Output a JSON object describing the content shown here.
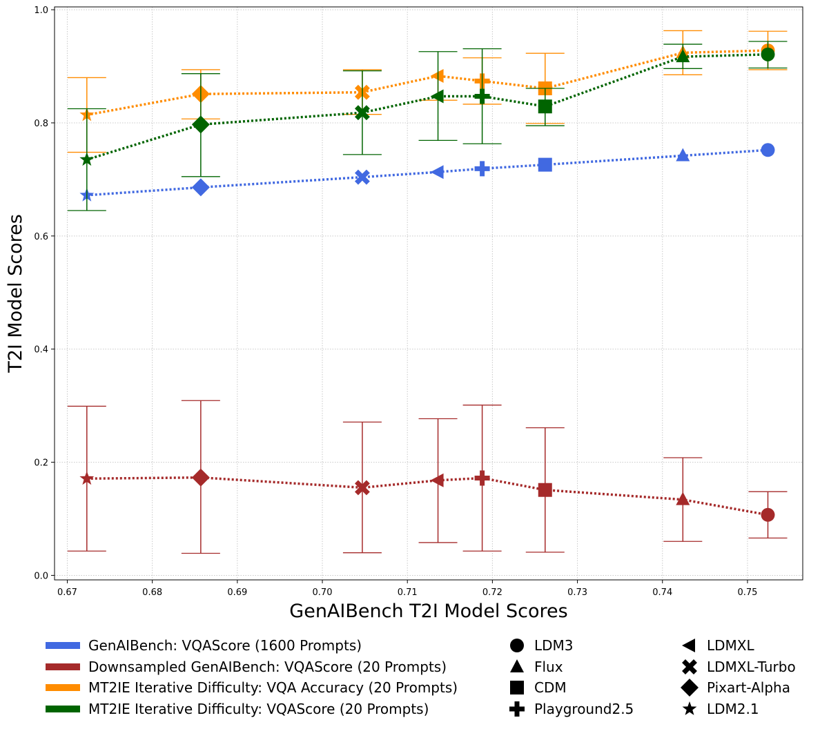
{
  "chart_data": {
    "type": "line",
    "title": "",
    "xlabel": "GenAIBench T2I Model Scores",
    "ylabel": "T2I Model Scores",
    "xlim": [
      0.6685,
      0.7565
    ],
    "ylim": [
      -0.008,
      1.005
    ],
    "xticks": [
      "0.67",
      "0.68",
      "0.69",
      "0.70",
      "0.71",
      "0.72",
      "0.73",
      "0.74",
      "0.75"
    ],
    "yticks": [
      "0.0",
      "0.2",
      "0.4",
      "0.6",
      "0.8",
      "1.0"
    ],
    "grid": true,
    "models": [
      {
        "name": "LDM2.1",
        "marker": "star",
        "x": 0.6723
      },
      {
        "name": "Pixart-Alpha",
        "marker": "diamond",
        "x": 0.6857
      },
      {
        "name": "LDMXL-Turbo",
        "marker": "x",
        "x": 0.7047
      },
      {
        "name": "LDMXL",
        "marker": "triangle-left",
        "x": 0.7136
      },
      {
        "name": "Playground2.5",
        "marker": "plus",
        "x": 0.7188
      },
      {
        "name": "CDM",
        "marker": "square",
        "x": 0.7262
      },
      {
        "name": "Flux",
        "marker": "triangle-up",
        "x": 0.7424
      },
      {
        "name": "LDM3",
        "marker": "circle",
        "x": 0.7524
      }
    ],
    "series": [
      {
        "name": "GenAIBench: VQAScore (1600 Prompts)",
        "color": "#4169e1",
        "values": [
          0.672,
          0.686,
          0.704,
          0.713,
          0.719,
          0.726,
          0.742,
          0.752
        ],
        "err_low": null,
        "err_high": null
      },
      {
        "name": "Downsampled GenAIBench: VQAScore (20 Prompts)",
        "color": "#a52a2a",
        "values": [
          0.171,
          0.173,
          0.155,
          0.168,
          0.172,
          0.151,
          0.134,
          0.107
        ],
        "err_low": [
          0.043,
          0.039,
          0.04,
          0.058,
          0.043,
          0.041,
          0.06,
          0.066
        ],
        "err_high": [
          0.299,
          0.309,
          0.271,
          0.277,
          0.301,
          0.261,
          0.208,
          0.148
        ]
      },
      {
        "name": "MT2IE Iterative Difficulty: VQA Accuracy (20 Prompts)",
        "color": "#ff8c00",
        "values": [
          0.814,
          0.851,
          0.854,
          0.883,
          0.874,
          0.861,
          0.924,
          0.928
        ],
        "err_low": [
          0.748,
          0.807,
          0.815,
          0.84,
          0.833,
          0.799,
          0.885,
          0.894
        ],
        "err_high": [
          0.88,
          0.894,
          0.894,
          null,
          0.915,
          0.923,
          0.963,
          0.962
        ]
      },
      {
        "name": "MT2IE Iterative Difficulty: VQAScore (20 Prompts)",
        "color": "#006400",
        "values": [
          0.735,
          0.797,
          0.818,
          0.847,
          0.847,
          0.829,
          0.917,
          0.921
        ],
        "err_low": [
          0.645,
          0.705,
          0.744,
          0.769,
          0.763,
          0.795,
          0.896,
          0.897
        ],
        "err_high": [
          0.825,
          0.887,
          0.892,
          0.926,
          0.931,
          0.861,
          0.939,
          0.944
        ]
      }
    ]
  }
}
